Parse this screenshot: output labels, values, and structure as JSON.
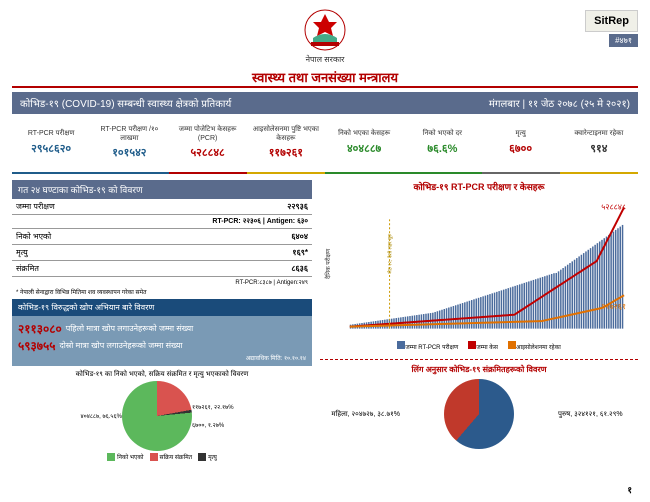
{
  "header": {
    "gov": "नेपाल सरकार",
    "ministry": "स्वास्थ्य तथा जनसंख्या मन्त्रालय",
    "sitrep": "SitRep",
    "sitrep_num": "#४७१"
  },
  "banner": {
    "left": "कोभिड-१९ (COVID-19) सम्बन्धी स्वास्थ्य क्षेत्रको प्रतिकार्य",
    "right": "मंगलबार | ११ जेठ २०७८ (२५ मे २०२१)"
  },
  "stats": [
    {
      "label": "RT-PCR परीक्षण",
      "value": "२९५८६२०",
      "color": "#1f5c8a",
      "border": "#1f5c8a"
    },
    {
      "label": "RT-PCR परीक्षण /१० लाखमा",
      "value": "१०१५४२",
      "color": "#1f5c8a",
      "border": "#1f5c8a"
    },
    {
      "label": "जम्मा पोजेटिभ केसहरू (PCR)",
      "value": "५२८८४८",
      "color": "#b30000",
      "border": "#b30000"
    },
    {
      "label": "आइसोलेसनमा पुष्टि भएका केसहरू",
      "value": "११७२६१",
      "color": "#b30000",
      "border": "#d4a800"
    },
    {
      "label": "निको भएका केसहरू",
      "value": "४०४८८७",
      "color": "#2a8a2a",
      "border": "#2a8a2a"
    },
    {
      "label": "निको भएको दर",
      "value": "७६.६%",
      "color": "#2a8a2a",
      "border": "#2a8a2a"
    },
    {
      "label": "मृत्यु",
      "value": "६७००",
      "color": "#b30000",
      "border": "#666"
    },
    {
      "label": "क्वारेन्टाइनमा रहेका",
      "value": "९१४",
      "color": "#333",
      "border": "#d4a800"
    }
  ],
  "last24": {
    "header": "गत २४ घण्टाका कोभिड-१९ को विवरण",
    "rows": [
      {
        "label": "जम्मा परीक्षण",
        "value": "२२९३६"
      },
      {
        "label_right": "RT-PCR: २२३०६ | Antigen: ६३०"
      },
      {
        "label": "निको भएको",
        "value": "६४०४"
      },
      {
        "label": "मृत्यु",
        "value": "१६९*"
      },
      {
        "label": "संक्रमित",
        "value": "८६३६"
      }
    ],
    "foot1": "RT-PCR:८३८७ | Antigen:२४९",
    "foot2": "* नेपाली सेनाद्वारा विभिन्न मितिमा शव व्यवस्थापन गरेका समेत"
  },
  "vaccine": {
    "header": "कोभिड-१९ विरुद्धको खोप अभियान बारे विवरण",
    "n1": "२११३०८०",
    "t1": "पहिलो मात्रा खोप लगाउनेहरूको जम्मा संख्या",
    "n2": "५९३७५५",
    "t2": "दोस्रो मात्रा खोप लगाउनेहरूको जम्मा संख्या",
    "foot": "अद्यावधिक मिति: १०.१०.१४"
  },
  "pie1": {
    "title": "कोभिड-१९ का निको भएको, सक्रिय संक्रमित र मृत्यु भएकाको विवरण",
    "colors": {
      "recovered": "#5cb85c",
      "active": "#d9534f",
      "death": "#333"
    },
    "labels": {
      "recovered": "४०४८८७, ७६.५६%",
      "active": "११७२६१, २२.१७%",
      "death": "६७००, १.२७%"
    },
    "legend": {
      "recovered": "निको भएको",
      "active": "सक्रिय संक्रमित",
      "death": "मृत्यु"
    }
  },
  "chart": {
    "title": "कोभिड-१९ RT-PCR परीक्षण र केसहरू",
    "top_value": "५२८८४८",
    "mid_value": "११७२६१",
    "legend": {
      "bars": "जम्मा RT-PCR परीक्षण",
      "total": "जम्मा केस",
      "iso": "आइसोलेशनमा रहेका"
    },
    "bar_color": "#4a6b9c",
    "line1_color": "#c00000",
    "line2_color": "#e07000",
    "axis_label": "दैनिक परीक्षण",
    "marker": "जेठ १२, देशो लहर सुरु"
  },
  "gender": {
    "title": "लिंग अनुसार कोभिड-१९ संक्रमितहरूको विवरण",
    "female": {
      "label": "महिला, २०४७२७, ३८.७१%",
      "color": "#c0392b"
    },
    "male": {
      "label": "पुरुष, ३२४१२१, ६१.२९%",
      "color": "#2c5a8c"
    }
  },
  "page": "१"
}
